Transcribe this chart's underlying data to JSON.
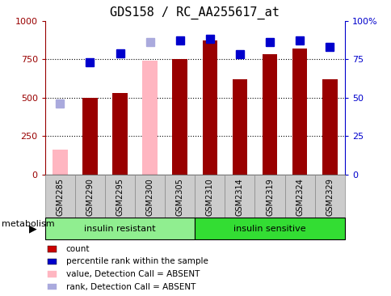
{
  "title": "GDS158 / RC_AA255617_at",
  "samples": [
    "GSM2285",
    "GSM2290",
    "GSM2295",
    "GSM2300",
    "GSM2305",
    "GSM2310",
    "GSM2314",
    "GSM2319",
    "GSM2324",
    "GSM2329"
  ],
  "count_values": [
    160,
    500,
    530,
    740,
    750,
    870,
    620,
    780,
    820,
    620
  ],
  "count_absent": [
    true,
    false,
    false,
    true,
    false,
    false,
    false,
    false,
    false,
    false
  ],
  "rank_values": [
    46,
    73,
    79,
    86,
    87,
    88,
    78,
    86,
    87,
    83
  ],
  "rank_absent": [
    true,
    false,
    false,
    true,
    false,
    false,
    false,
    false,
    false,
    false
  ],
  "groups": [
    {
      "label": "insulin resistant",
      "start": 0,
      "end": 5,
      "color": "#90EE90"
    },
    {
      "label": "insulin sensitive",
      "start": 5,
      "end": 10,
      "color": "#33DD33"
    }
  ],
  "group_label": "metabolism",
  "ylim_left": [
    0,
    1000
  ],
  "ylim_right": [
    0,
    100
  ],
  "yticks_left": [
    0,
    250,
    500,
    750,
    1000
  ],
  "yticks_right": [
    0,
    25,
    50,
    75,
    100
  ],
  "bar_color_present": "#990000",
  "bar_color_absent": "#FFB6C1",
  "rank_color_present": "#0000CC",
  "rank_color_absent": "#AAAADD",
  "bar_width": 0.5,
  "marker_size": 7,
  "legend_items": [
    {
      "label": "count",
      "color": "#CC0000"
    },
    {
      "label": "percentile rank within the sample",
      "color": "#0000CC"
    },
    {
      "label": "value, Detection Call = ABSENT",
      "color": "#FFB6C1"
    },
    {
      "label": "rank, Detection Call = ABSENT",
      "color": "#AAAADD"
    }
  ],
  "grid_values": [
    250,
    500,
    750
  ],
  "xlim": [
    -0.5,
    9.5
  ],
  "tick_bg_color": "#CCCCCC",
  "tick_border_color": "#888888"
}
